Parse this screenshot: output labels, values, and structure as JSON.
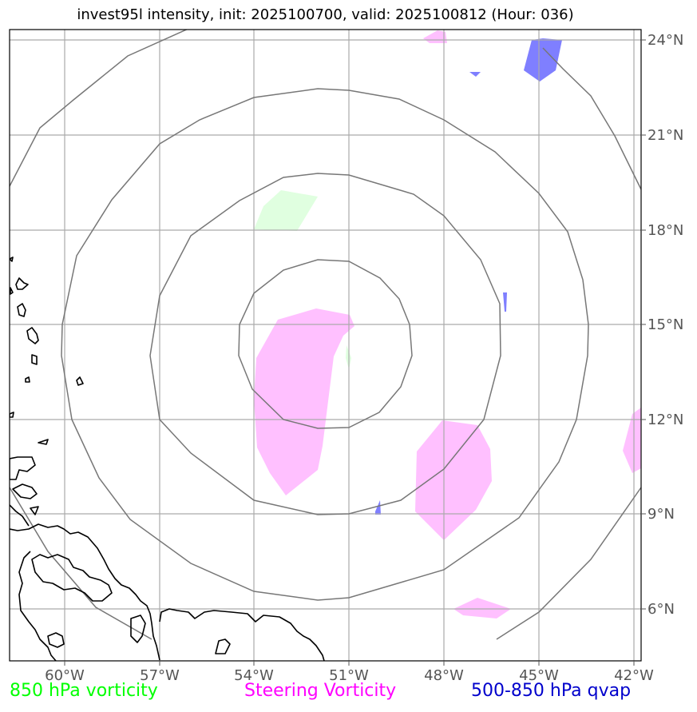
{
  "title": "invest95l intensity, init: 2025100700, valid: 2025100812 (Hour: 036)",
  "lon_ticks": [
    "60°W",
    "57°W",
    "54°W",
    "51°W",
    "48°W",
    "45°W",
    "42°W"
  ],
  "lat_ticks": [
    "24°N",
    "21°N",
    "18°N",
    "15°N",
    "12°N",
    "9°N",
    "6°N"
  ],
  "legend": [
    {
      "label": "850 hPa vorticity",
      "color": "#00ff00"
    },
    {
      "label": "Steering Vorticity",
      "color": "#ff00ff"
    },
    {
      "label": "500-850 hPa qvap",
      "color": "#0000cc"
    }
  ],
  "colors": {
    "vorticity_850_fill": "#e0ffe0",
    "steering_vorticity_fill": "#ffc0ff",
    "qvap_fill": "#7f7fff",
    "range_rings": "#777777",
    "gridlines": "#aaaaaa",
    "coastline": "#000000"
  }
}
